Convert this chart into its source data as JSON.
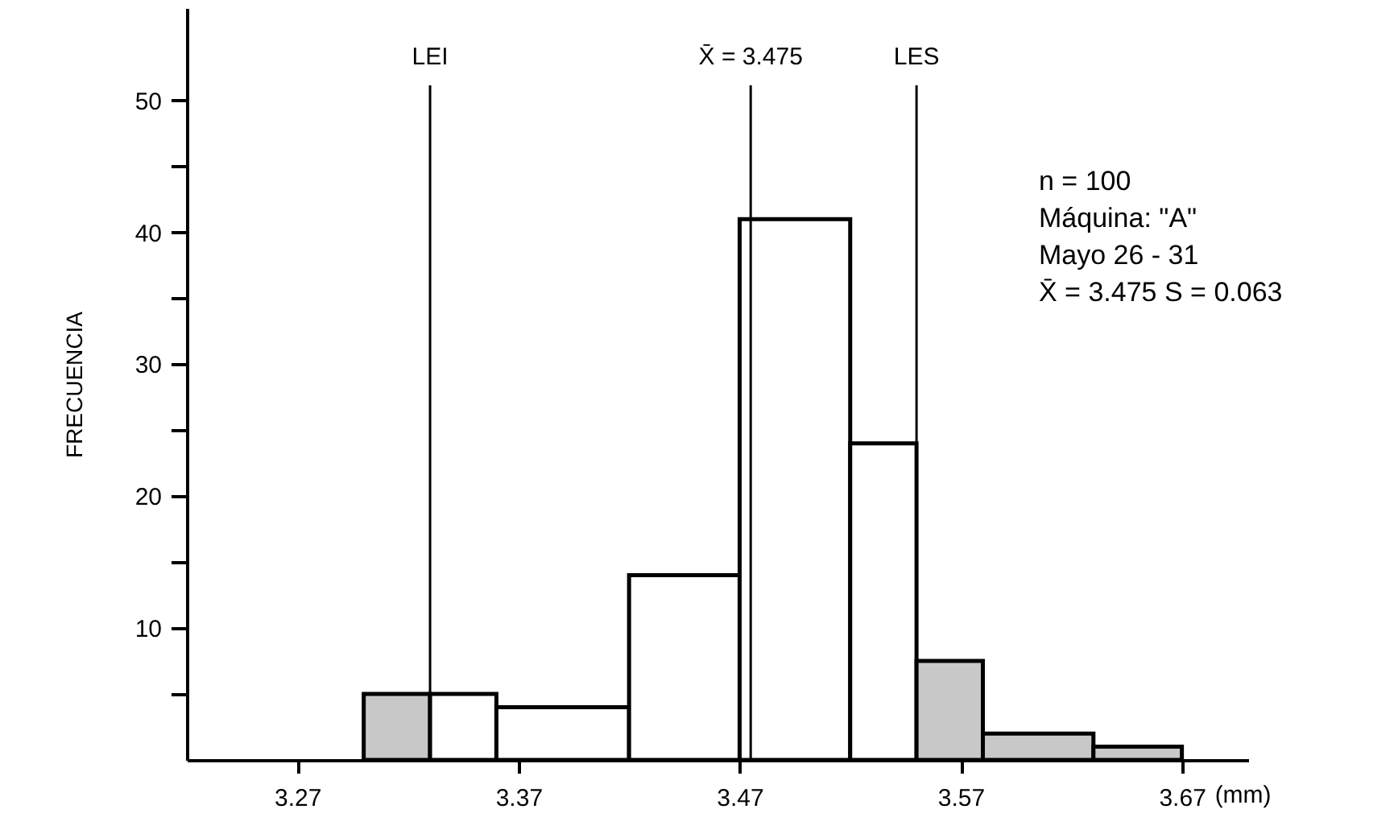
{
  "chart_data": {
    "type": "histogram",
    "bins": [
      3.3,
      3.33,
      3.36,
      3.42,
      3.47,
      3.52,
      3.55,
      3.58,
      3.63,
      3.67
    ],
    "values": [
      5,
      5,
      4,
      14,
      41,
      24,
      7.5,
      2,
      1
    ],
    "colors": [
      "#c8c8c8",
      "#ffffff",
      "#ffffff",
      "#ffffff",
      "#ffffff",
      "#ffffff",
      "#c8c8c8",
      "#c8c8c8",
      "#c8c8c8"
    ],
    "xlim": [
      3.22,
      3.7
    ],
    "ylim": [
      0,
      57
    ],
    "xticks": [
      3.27,
      3.37,
      3.47,
      3.57,
      3.67
    ],
    "yticks": [
      {
        "value": 5,
        "label": null
      },
      10,
      {
        "value": 15,
        "label": null
      },
      20,
      {
        "value": 25,
        "label": null
      },
      30,
      {
        "value": 35,
        "label": null
      },
      40,
      {
        "value": 45,
        "label": null
      },
      50
    ],
    "xlabel": "(mm)",
    "ylabel": "FRECUENCIA",
    "ref_lines": [
      {
        "axis": "x",
        "value": 3.33,
        "label": "LEI"
      },
      {
        "axis": "x",
        "value": 3.475,
        "label": "X̄ = 3.475"
      },
      {
        "axis": "x",
        "value": 3.55,
        "label": "LES"
      }
    ],
    "annotations": [
      "n = 100",
      "Máquina: \"A\"",
      "Mayo 26 - 31",
      "X̄ = 3.475  S = 0.063"
    ],
    "grid": false
  }
}
